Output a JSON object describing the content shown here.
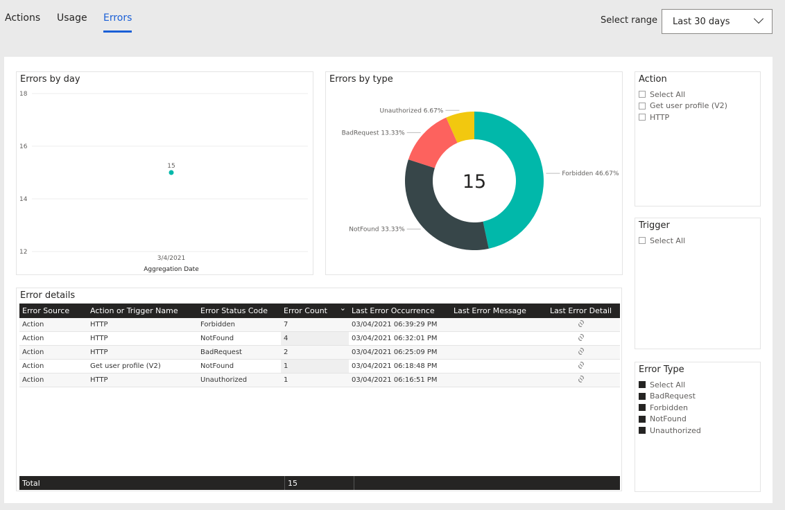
{
  "tabs": [
    {
      "label": "Actions",
      "active": false
    },
    {
      "label": "Usage",
      "active": false
    },
    {
      "label": "Errors",
      "active": true
    }
  ],
  "range": {
    "label": "Select range",
    "value": "Last 30 days"
  },
  "errors_by_day": {
    "title": "Errors by day",
    "chart_data": {
      "type": "scatter",
      "x": [
        "3/4/2021"
      ],
      "y": [
        15
      ],
      "data_labels": [
        "15"
      ],
      "xlabel": "Aggregation Date",
      "ylabel": "",
      "ylim": [
        12,
        18
      ],
      "yticks": [
        "18",
        "16",
        "14",
        "12"
      ],
      "grid": true,
      "color": "#01b8aa"
    }
  },
  "errors_by_type": {
    "title": "Errors by type",
    "center_label": "15",
    "chart_data": {
      "type": "pie",
      "donut": true,
      "labels": [
        "Forbidden",
        "NotFound",
        "BadRequest",
        "Unauthorized"
      ],
      "values": [
        7,
        5,
        2,
        1
      ],
      "data_labels": [
        "Forbidden 46.67%",
        "NotFound 33.33%",
        "BadRequest 13.33%",
        "Unauthorized 6.67%"
      ],
      "colors": [
        "#01b8aa",
        "#374649",
        "#fd625e",
        "#f2c80f"
      ]
    }
  },
  "error_details": {
    "title": "Error details",
    "columns": [
      "Error Source",
      "Action or Trigger Name",
      "Error Status Code",
      "Error Count",
      "Last Error Occurrence",
      "Last Error Message",
      "Last Error Detail"
    ],
    "rows": [
      [
        "Action",
        "HTTP",
        "Forbidden",
        "7",
        "03/04/2021 06:39:29 PM",
        ""
      ],
      [
        "Action",
        "HTTP",
        "NotFound",
        "4",
        "03/04/2021 06:32:01 PM",
        ""
      ],
      [
        "Action",
        "HTTP",
        "BadRequest",
        "2",
        "03/04/2021 06:25:09 PM",
        ""
      ],
      [
        "Action",
        "Get user profile (V2)",
        "NotFound",
        "1",
        "03/04/2021 06:18:48 PM",
        ""
      ],
      [
        "Action",
        "HTTP",
        "Unauthorized",
        "1",
        "03/04/2021 06:16:51 PM",
        ""
      ]
    ],
    "total_label": "Total",
    "total_value": "15"
  },
  "slicers": [
    {
      "title": "Action",
      "items": [
        {
          "label": "Select All",
          "checked": false
        },
        {
          "label": "Get user profile (V2)",
          "checked": false
        },
        {
          "label": "HTTP",
          "checked": false
        }
      ]
    },
    {
      "title": "Trigger",
      "items": [
        {
          "label": "Select All",
          "checked": false
        }
      ]
    },
    {
      "title": "Error Type",
      "items": [
        {
          "label": "Select All",
          "checked": true
        },
        {
          "label": "BadRequest",
          "checked": true
        },
        {
          "label": "Forbidden",
          "checked": true
        },
        {
          "label": "NotFound",
          "checked": true
        },
        {
          "label": "Unauthorized",
          "checked": true
        }
      ]
    }
  ]
}
